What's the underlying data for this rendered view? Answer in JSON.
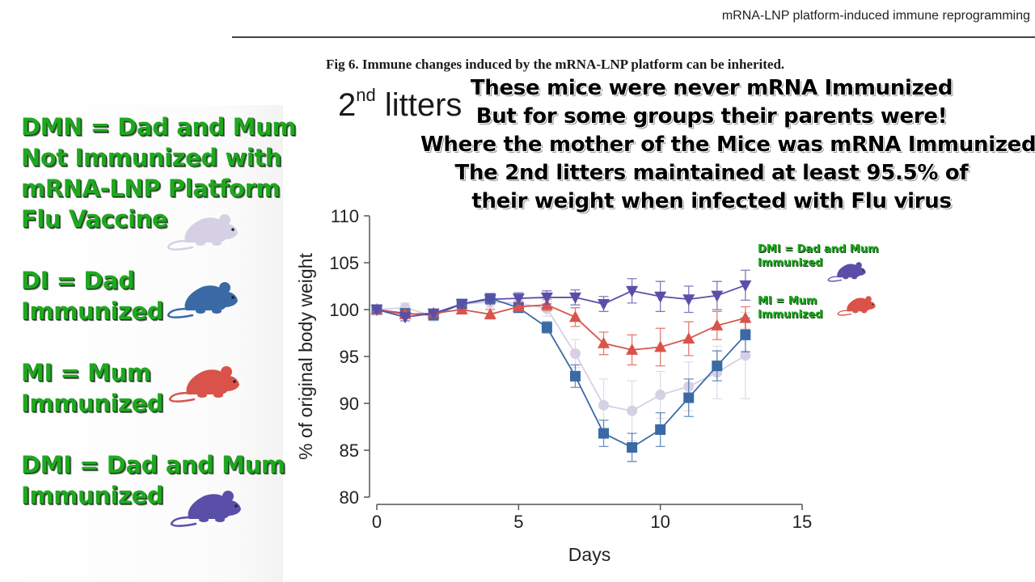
{
  "running_header": "mRNA-LNP platform-induced immune reprogramming",
  "figure_caption": "Fig 6. Immune changes induced by the mRNA-LNP platform can be inherited.",
  "panel_title": {
    "main": "2",
    "sup": "nd",
    "rest": " litters"
  },
  "overlay_lines": [
    "These mice were never mRNA Immunized",
    "But for some groups their parents were!",
    "Where the mother of the Mice was mRNA Immunized",
    "The 2nd litters maintained at least 95.5% of",
    "their weight when infected with Flu virus"
  ],
  "legend_defs": [
    {
      "lines": [
        "DMN = Dad and Mum",
        "Not Immunized with",
        "mRNA-LNP Platform",
        "Flu Vaccine"
      ],
      "mouse_icon": "mouse-icon",
      "color": "#d6d0e4"
    },
    {
      "lines": [
        "DI =   Dad",
        "Immunized"
      ],
      "mouse_icon": "mouse-icon",
      "color": "#3a6aa6"
    },
    {
      "lines": [
        "MI =   Mum",
        "Immunized"
      ],
      "mouse_icon": "mouse-icon",
      "color": "#d9534a"
    },
    {
      "lines": [
        "DMI =  Dad and Mum",
        "Immunized"
      ],
      "mouse_icon": "mouse-icon",
      "color": "#5a4fa8"
    }
  ],
  "inline_legend": [
    {
      "lines": [
        "DMI =  Dad and Mum",
        "Immunized"
      ],
      "color": "#5a4fa8"
    },
    {
      "lines": [
        "MI =   Mum",
        "Immunized"
      ],
      "color": "#d9534a"
    }
  ],
  "chart_data": {
    "type": "line",
    "xlabel": "Days",
    "ylabel": "% of original body weight",
    "xlim": [
      0,
      15
    ],
    "ylim": [
      80,
      110
    ],
    "x_ticks": [
      "0",
      "5",
      "10",
      "15"
    ],
    "y_ticks": [
      "80",
      "85",
      "90",
      "95",
      "100",
      "105",
      "110"
    ],
    "grid": false,
    "series": [
      {
        "name": "DMN",
        "marker": "circle",
        "color": "#d6d0e4",
        "x": [
          0,
          1,
          2,
          3,
          4,
          5,
          6,
          7,
          8,
          9,
          10,
          11,
          12,
          13
        ],
        "y": [
          100,
          100.2,
          99.3,
          100.6,
          100.8,
          100.7,
          100.1,
          95.3,
          89.8,
          89.2,
          90.9,
          91.8,
          93.3,
          95.1
        ],
        "err": [
          0.3,
          0.5,
          0.5,
          0.5,
          0.6,
          0.7,
          0.8,
          1.5,
          2.8,
          3.2,
          2.5,
          2.6,
          2.8,
          4.6
        ]
      },
      {
        "name": "DI",
        "marker": "square",
        "color": "#3a6aa6",
        "x": [
          0,
          1,
          2,
          3,
          4,
          5,
          6,
          7,
          8,
          9,
          10,
          11,
          12,
          13
        ],
        "y": [
          100,
          99.6,
          99.4,
          100.6,
          101.2,
          100.2,
          98.1,
          92.9,
          86.8,
          85.3,
          87.2,
          90.6,
          94.0,
          97.3
        ],
        "err": [
          0.3,
          0.4,
          0.4,
          0.4,
          0.5,
          0.5,
          0.6,
          1.2,
          1.4,
          1.5,
          1.8,
          2.0,
          1.6,
          1.8
        ]
      },
      {
        "name": "MI",
        "marker": "triangle-up",
        "color": "#d9534a",
        "x": [
          0,
          1,
          2,
          3,
          4,
          5,
          6,
          7,
          8,
          9,
          10,
          11,
          12,
          13
        ],
        "y": [
          100,
          99.5,
          99.6,
          100.0,
          99.5,
          100.3,
          100.5,
          99.2,
          96.4,
          95.7,
          96.0,
          96.9,
          98.3,
          99.1
        ],
        "err": [
          0.3,
          0.4,
          0.4,
          0.4,
          0.5,
          0.5,
          0.6,
          1.0,
          1.2,
          1.6,
          2.0,
          1.8,
          1.5,
          1.2
        ]
      },
      {
        "name": "DMI",
        "marker": "triangle-down",
        "color": "#5a4fa8",
        "x": [
          0,
          1,
          2,
          3,
          4,
          5,
          6,
          7,
          8,
          9,
          10,
          11,
          12,
          13
        ],
        "y": [
          100,
          99.2,
          99.6,
          100.6,
          101.1,
          101.2,
          101.3,
          101.3,
          100.6,
          102.0,
          101.4,
          101.1,
          101.5,
          102.6
        ],
        "err": [
          0.3,
          0.4,
          0.4,
          0.4,
          0.5,
          0.6,
          0.7,
          0.8,
          0.8,
          1.3,
          1.6,
          1.4,
          1.5,
          1.6
        ]
      }
    ]
  }
}
